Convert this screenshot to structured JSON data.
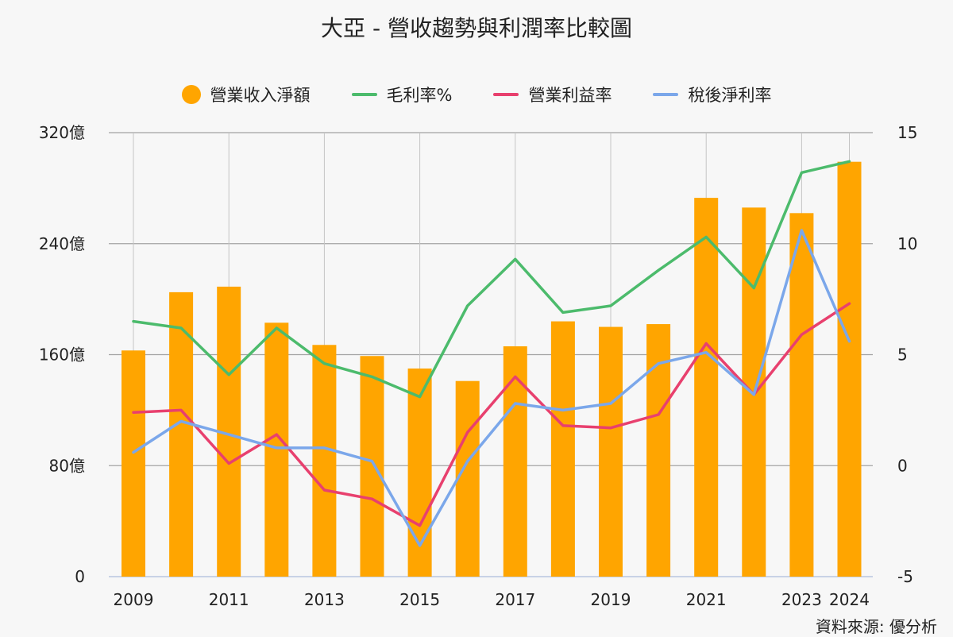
{
  "title": "大亞 - 營收趨勢與利潤率比較圖",
  "source": "資料來源: 優分析",
  "colors": {
    "revenue": "#FFA500",
    "gross": "#4CBB6C",
    "operating": "#E8406E",
    "net": "#7BA7EA"
  },
  "chart_data": {
    "type": "bar+line",
    "title": "大亞 - 營收趨勢與利潤率比較圖",
    "categories": [
      "2009",
      "2010",
      "2011",
      "2012",
      "2013",
      "2014",
      "2015",
      "2016",
      "2017",
      "2018",
      "2019",
      "2020",
      "2021",
      "2022",
      "2023",
      "2024"
    ],
    "x_tick_labels": [
      "2009",
      "2011",
      "2013",
      "2015",
      "2017",
      "2019",
      "2021",
      "2023",
      "2024"
    ],
    "left_axis": {
      "ylim": [
        0,
        320
      ],
      "ticks": [
        "0",
        "80億",
        "160億",
        "240億",
        "320億"
      ],
      "tick_values": [
        0,
        80,
        160,
        240,
        320
      ]
    },
    "right_axis": {
      "ylim": [
        -5,
        15
      ],
      "ticks": [
        "-5",
        "0",
        "5",
        "10",
        "15"
      ],
      "tick_values": [
        -5,
        0,
        5,
        10,
        15
      ]
    },
    "grid": true,
    "legend_position": "top-center",
    "series": [
      {
        "name": "營業收入淨額",
        "type": "bar",
        "axis": "left",
        "values": [
          163,
          205,
          209,
          183,
          167,
          159,
          150,
          141,
          166,
          184,
          180,
          182,
          273,
          266,
          262,
          299
        ]
      },
      {
        "name": "毛利率%",
        "type": "line",
        "axis": "right",
        "values": [
          6.5,
          6.2,
          4.1,
          6.2,
          4.6,
          4.0,
          3.1,
          7.2,
          9.3,
          6.9,
          7.2,
          8.8,
          10.3,
          8.0,
          13.2,
          13.7
        ]
      },
      {
        "name": "營業利益率",
        "type": "line",
        "axis": "right",
        "values": [
          2.4,
          2.5,
          0.1,
          1.4,
          -1.1,
          -1.5,
          -2.7,
          1.5,
          4.0,
          1.8,
          1.7,
          2.3,
          5.5,
          3.2,
          5.9,
          7.3
        ]
      },
      {
        "name": "稅後淨利率",
        "type": "line",
        "axis": "right",
        "values": [
          0.6,
          2.0,
          1.4,
          0.8,
          0.8,
          0.2,
          -3.6,
          0.2,
          2.8,
          2.5,
          2.8,
          4.6,
          5.1,
          3.2,
          10.6,
          5.6
        ]
      }
    ]
  }
}
